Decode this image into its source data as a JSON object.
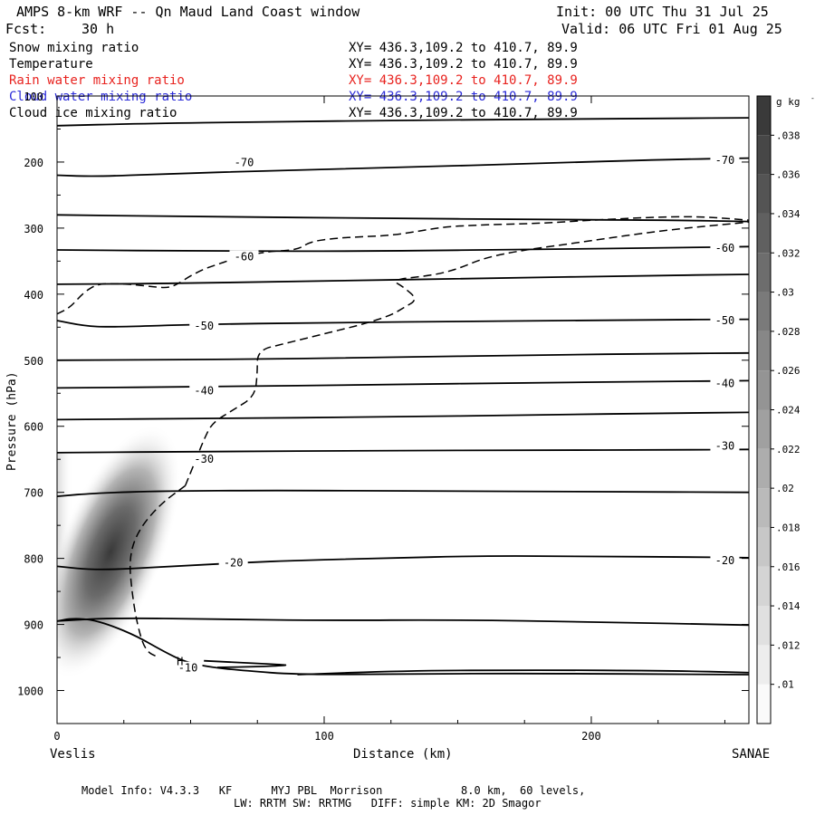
{
  "header": {
    "title": "AMPS 8-km WRF -- Qn Maud Land Coast window",
    "init": "Init: 00 UTC Thu 31 Jul 25",
    "fcst_label": "Fcst:",
    "fcst_value": "30 h",
    "valid": "Valid: 06 UTC Fri 01 Aug 25"
  },
  "fields": [
    {
      "name": "Snow mixing ratio",
      "xy": "XY= 436.3,109.2 to 410.7, 89.9",
      "color": "#000000"
    },
    {
      "name": "Temperature",
      "xy": "XY= 436.3,109.2 to 410.7, 89.9",
      "color": "#000000"
    },
    {
      "name": "Rain water mixing ratio",
      "xy": "XY= 436.3,109.2 to 410.7, 89.9",
      "color": "#e8231f"
    },
    {
      "name": "Cloud water mixing ratio",
      "xy": "XY= 436.3,109.2 to 410.7, 89.9",
      "color": "#2b2bd8"
    },
    {
      "name": "Cloud ice mixing ratio",
      "xy": "XY= 436.3,109.2 to 410.7, 89.9",
      "color": "#000000"
    }
  ],
  "footer": {
    "line1": "Model Info: V4.3.3   KF      MYJ PBL  Morrison            8.0 km,  60 levels,",
    "line2": "LW: RRTM SW: RRTMG   DIFF: simple KM: 2D Smagor"
  },
  "chart_data": {
    "type": "cross-section",
    "xlabel": "Distance (km)",
    "ylabel": "Pressure (hPa)",
    "xlim": [
      0,
      259
    ],
    "ylim": [
      1050,
      100
    ],
    "x_ticks": [
      0,
      100,
      200
    ],
    "y_ticks": [
      100,
      200,
      300,
      400,
      500,
      600,
      700,
      800,
      900,
      1000
    ],
    "x_end_labels": {
      "left": "Veslis",
      "right": "SANAE"
    },
    "colorbar": {
      "unit": "g kg",
      "unit_exp": "-1",
      "levels": [
        ".01",
        ".012",
        ".014",
        ".016",
        ".018",
        ".02",
        ".022",
        ".024",
        ".026",
        ".028",
        ".03",
        ".032",
        ".034",
        ".036",
        ".038"
      ]
    },
    "isotherms": [
      {
        "label": "-70",
        "points": [
          [
            0,
            145
          ],
          [
            30,
            142
          ],
          [
            80,
            139
          ],
          [
            130,
            137
          ],
          [
            180,
            135
          ],
          [
            230,
            134
          ],
          [
            259,
            133
          ]
        ]
      },
      {
        "label": "-70",
        "points": [
          [
            0,
            220
          ],
          [
            15,
            222
          ],
          [
            40,
            218
          ],
          [
            80,
            213
          ],
          [
            130,
            208
          ],
          [
            180,
            202
          ],
          [
            230,
            196
          ],
          [
            259,
            194
          ]
        ]
      },
      {
        "label": "",
        "points": [
          [
            0,
            280
          ],
          [
            60,
            283
          ],
          [
            120,
            285
          ],
          [
            180,
            287
          ],
          [
            230,
            288
          ],
          [
            259,
            290
          ]
        ]
      },
      {
        "label": "-60",
        "points": [
          [
            0,
            333
          ],
          [
            60,
            335
          ],
          [
            120,
            335
          ],
          [
            180,
            332
          ],
          [
            230,
            330
          ],
          [
            259,
            328
          ]
        ]
      },
      {
        "label": "",
        "points": [
          [
            0,
            385
          ],
          [
            40,
            384
          ],
          [
            100,
            380
          ],
          [
            160,
            376
          ],
          [
            220,
            372
          ],
          [
            259,
            370
          ]
        ]
      },
      {
        "label": "-50",
        "points": [
          [
            0,
            440
          ],
          [
            10,
            448
          ],
          [
            20,
            450
          ],
          [
            50,
            446
          ],
          [
            100,
            443
          ],
          [
            160,
            441
          ],
          [
            220,
            439
          ],
          [
            259,
            438
          ]
        ]
      },
      {
        "label": "",
        "points": [
          [
            0,
            500
          ],
          [
            60,
            499
          ],
          [
            120,
            496
          ],
          [
            180,
            492
          ],
          [
            230,
            490
          ],
          [
            259,
            489
          ]
        ]
      },
      {
        "label": "-40",
        "points": [
          [
            0,
            542
          ],
          [
            60,
            540
          ],
          [
            120,
            537
          ],
          [
            180,
            534
          ],
          [
            230,
            532
          ],
          [
            259,
            531
          ]
        ]
      },
      {
        "label": "",
        "points": [
          [
            0,
            590
          ],
          [
            60,
            588
          ],
          [
            120,
            586
          ],
          [
            180,
            583
          ],
          [
            230,
            580
          ],
          [
            259,
            579
          ]
        ]
      },
      {
        "label": "-30",
        "points": [
          [
            0,
            640
          ],
          [
            60,
            638
          ],
          [
            120,
            637
          ],
          [
            180,
            636
          ],
          [
            230,
            636
          ],
          [
            259,
            635
          ]
        ]
      },
      {
        "label": "",
        "points": [
          [
            0,
            706
          ],
          [
            15,
            701
          ],
          [
            40,
            698
          ],
          [
            80,
            697
          ],
          [
            140,
            698
          ],
          [
            200,
            699
          ],
          [
            259,
            700
          ]
        ]
      },
      {
        "label": "-20",
        "points": [
          [
            0,
            812
          ],
          [
            15,
            818
          ],
          [
            40,
            813
          ],
          [
            80,
            804
          ],
          [
            120,
            800
          ],
          [
            160,
            796
          ],
          [
            200,
            797
          ],
          [
            240,
            798
          ],
          [
            259,
            799
          ]
        ]
      },
      {
        "label": "",
        "points": [
          [
            0,
            895
          ],
          [
            20,
            890
          ],
          [
            60,
            892
          ],
          [
            100,
            894
          ],
          [
            150,
            893
          ],
          [
            200,
            896
          ],
          [
            259,
            901
          ]
        ]
      },
      {
        "label": "-10",
        "points": [
          [
            0,
            895
          ],
          [
            5,
            891
          ],
          [
            12,
            892
          ],
          [
            20,
            901
          ],
          [
            30,
            918
          ],
          [
            40,
            941
          ],
          [
            48,
            957
          ],
          [
            58,
            965
          ],
          [
            70,
            970
          ],
          [
            90,
            976
          ],
          [
            130,
            975
          ],
          [
            180,
            974
          ],
          [
            259,
            976
          ]
        ]
      },
      {
        "label": "",
        "points": [
          [
            55,
            955
          ],
          [
            70,
            958
          ],
          [
            85,
            961
          ],
          [
            86,
            962
          ],
          [
            75,
            964
          ],
          [
            60,
            965
          ]
        ]
      },
      {
        "label": "",
        "points": [
          [
            90,
            976
          ],
          [
            130,
            970
          ],
          [
            180,
            969
          ],
          [
            230,
            970
          ],
          [
            259,
            973
          ]
        ]
      }
    ],
    "dashed_contours": [
      {
        "label": "",
        "points": [
          [
            0,
            430
          ],
          [
            5,
            420
          ],
          [
            10,
            397
          ],
          [
            15,
            385
          ],
          [
            20,
            384
          ],
          [
            28,
            385
          ],
          [
            38,
            390
          ],
          [
            42,
            390
          ],
          [
            45,
            385
          ],
          [
            50,
            372
          ],
          [
            55,
            362
          ],
          [
            60,
            355
          ],
          [
            65,
            348
          ],
          [
            70,
            342
          ],
          [
            80,
            335
          ],
          [
            90,
            333
          ],
          [
            95,
            320
          ],
          [
            105,
            315
          ],
          [
            115,
            313
          ],
          [
            125,
            311
          ],
          [
            135,
            305
          ],
          [
            145,
            298
          ],
          [
            160,
            295
          ],
          [
            180,
            293
          ],
          [
            200,
            288
          ],
          [
            220,
            284
          ],
          [
            240,
            282
          ],
          [
            259,
            288
          ]
        ]
      },
      {
        "label": "",
        "points": [
          [
            48,
            690
          ],
          [
            38,
            720
          ],
          [
            30,
            760
          ],
          [
            27,
            800
          ],
          [
            28,
            850
          ],
          [
            30,
            900
          ],
          [
            33,
            940
          ],
          [
            38,
            950
          ]
        ]
      },
      {
        "label": "",
        "points": [
          [
            48,
            690
          ],
          [
            52,
            650
          ],
          [
            55,
            620
          ],
          [
            58,
            595
          ],
          [
            66,
            575
          ],
          [
            74,
            555
          ],
          [
            75,
            520
          ],
          [
            75,
            485
          ],
          [
            85,
            475
          ],
          [
            95,
            465
          ],
          [
            105,
            455
          ],
          [
            115,
            445
          ],
          [
            125,
            432
          ],
          [
            130,
            420
          ],
          [
            135,
            408
          ],
          [
            130,
            390
          ],
          [
            125,
            378
          ],
          [
            140,
            372
          ],
          [
            150,
            362
          ],
          [
            160,
            345
          ],
          [
            175,
            333
          ],
          [
            195,
            322
          ],
          [
            215,
            310
          ],
          [
            235,
            300
          ],
          [
            259,
            291
          ]
        ]
      }
    ],
    "contour_labels": [
      {
        "text": "-70",
        "x": 70,
        "y": 201
      },
      {
        "text": "-60",
        "x": 70,
        "y": 343
      },
      {
        "text": "-50",
        "x": 55,
        "y": 448
      },
      {
        "text": "-40",
        "x": 55,
        "y": 546
      },
      {
        "text": "-30",
        "x": 55,
        "y": 650
      },
      {
        "text": "-20",
        "x": 66,
        "y": 807
      },
      {
        "text": "-10",
        "x": 49,
        "y": 966
      },
      {
        "text": "-70",
        "x": 250,
        "y": 197
      },
      {
        "text": "-60",
        "x": 250,
        "y": 330
      },
      {
        "text": "-50",
        "x": 250,
        "y": 440
      },
      {
        "text": "-40",
        "x": 250,
        "y": 535
      },
      {
        "text": "-30",
        "x": 250,
        "y": 630
      },
      {
        "text": "-20",
        "x": 250,
        "y": 803
      }
    ],
    "markers": [
      {
        "text": "H",
        "x": 46,
        "y": 956
      }
    ],
    "snow_blob": {
      "center_x": 20,
      "center_p": 790,
      "peak": 0.038
    }
  }
}
